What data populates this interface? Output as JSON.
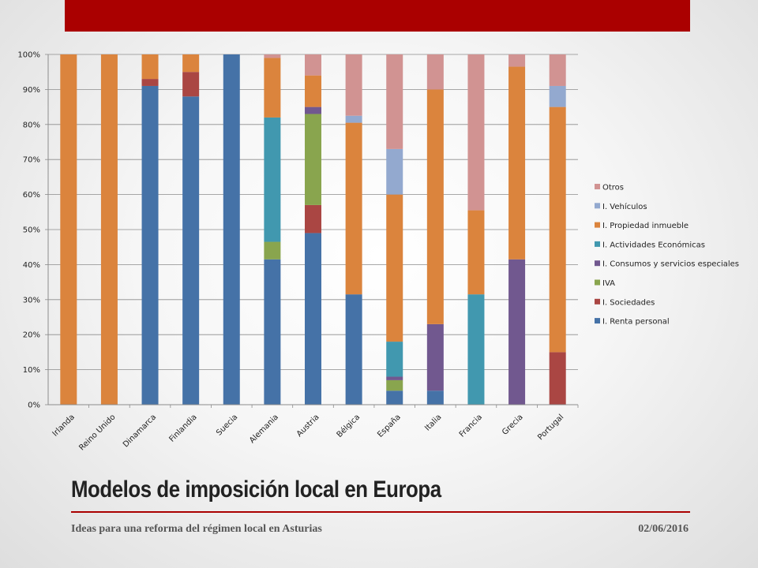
{
  "slide": {
    "title": "Modelos de imposición local en Europa",
    "footer_text": "Ideas para una reforma del régimen local en Asturias",
    "date": "02/06/2016",
    "band_color": "#aa0000",
    "rule_color": "#aa0000"
  },
  "chart_data": {
    "type": "bar",
    "stacked": true,
    "percent": true,
    "categories": [
      "Irlanda",
      "Reino Unido",
      "Dinamarca",
      "Finlandia",
      "Suecia",
      "Alemania",
      "Austria",
      "Bélgica",
      "España",
      "Italia",
      "Francia",
      "Grecia",
      "Portugal"
    ],
    "ylim": [
      0,
      100
    ],
    "yticks": [
      "0%",
      "10%",
      "20%",
      "30%",
      "40%",
      "50%",
      "60%",
      "70%",
      "80%",
      "90%",
      "100%"
    ],
    "grid": true,
    "legend_position": "right",
    "series": [
      {
        "name": "I. Renta personal",
        "color": "#4572a7",
        "values": [
          0,
          0,
          91,
          88,
          100,
          41.5,
          49,
          31.5,
          4,
          4,
          0,
          0,
          0
        ]
      },
      {
        "name": "I. Sociedades",
        "color": "#aa4643",
        "values": [
          0,
          0,
          2,
          7,
          0,
          0,
          8,
          0,
          0,
          0,
          0,
          0,
          15
        ]
      },
      {
        "name": "IVA",
        "color": "#89a54e",
        "values": [
          0,
          0,
          0,
          0,
          0,
          5,
          26,
          0,
          3,
          0,
          0,
          0,
          0
        ]
      },
      {
        "name": "I. Consumos y servicios especiales",
        "color": "#71588f",
        "values": [
          0,
          0,
          0,
          0,
          0,
          0,
          2,
          0,
          1,
          19,
          0,
          41.5,
          0
        ]
      },
      {
        "name": "I. Actividades Económicas",
        "color": "#4198af",
        "values": [
          0,
          0,
          0,
          0,
          0,
          35.5,
          0,
          0,
          10,
          0,
          31.5,
          0,
          0
        ]
      },
      {
        "name": "I. Propiedad inmueble",
        "color": "#db843d",
        "values": [
          100,
          100,
          7,
          5,
          0,
          17,
          9,
          49,
          42,
          67,
          24,
          55,
          70
        ]
      },
      {
        "name": "I. Vehículos",
        "color": "#93a9cf",
        "values": [
          0,
          0,
          0,
          0,
          0,
          0,
          0,
          2,
          13,
          0,
          0,
          0,
          6
        ]
      },
      {
        "name": "Otros",
        "color": "#d19392",
        "values": [
          0,
          0,
          0,
          0,
          0,
          1,
          6,
          17.5,
          27,
          10,
          44.5,
          3.5,
          9
        ]
      }
    ]
  }
}
